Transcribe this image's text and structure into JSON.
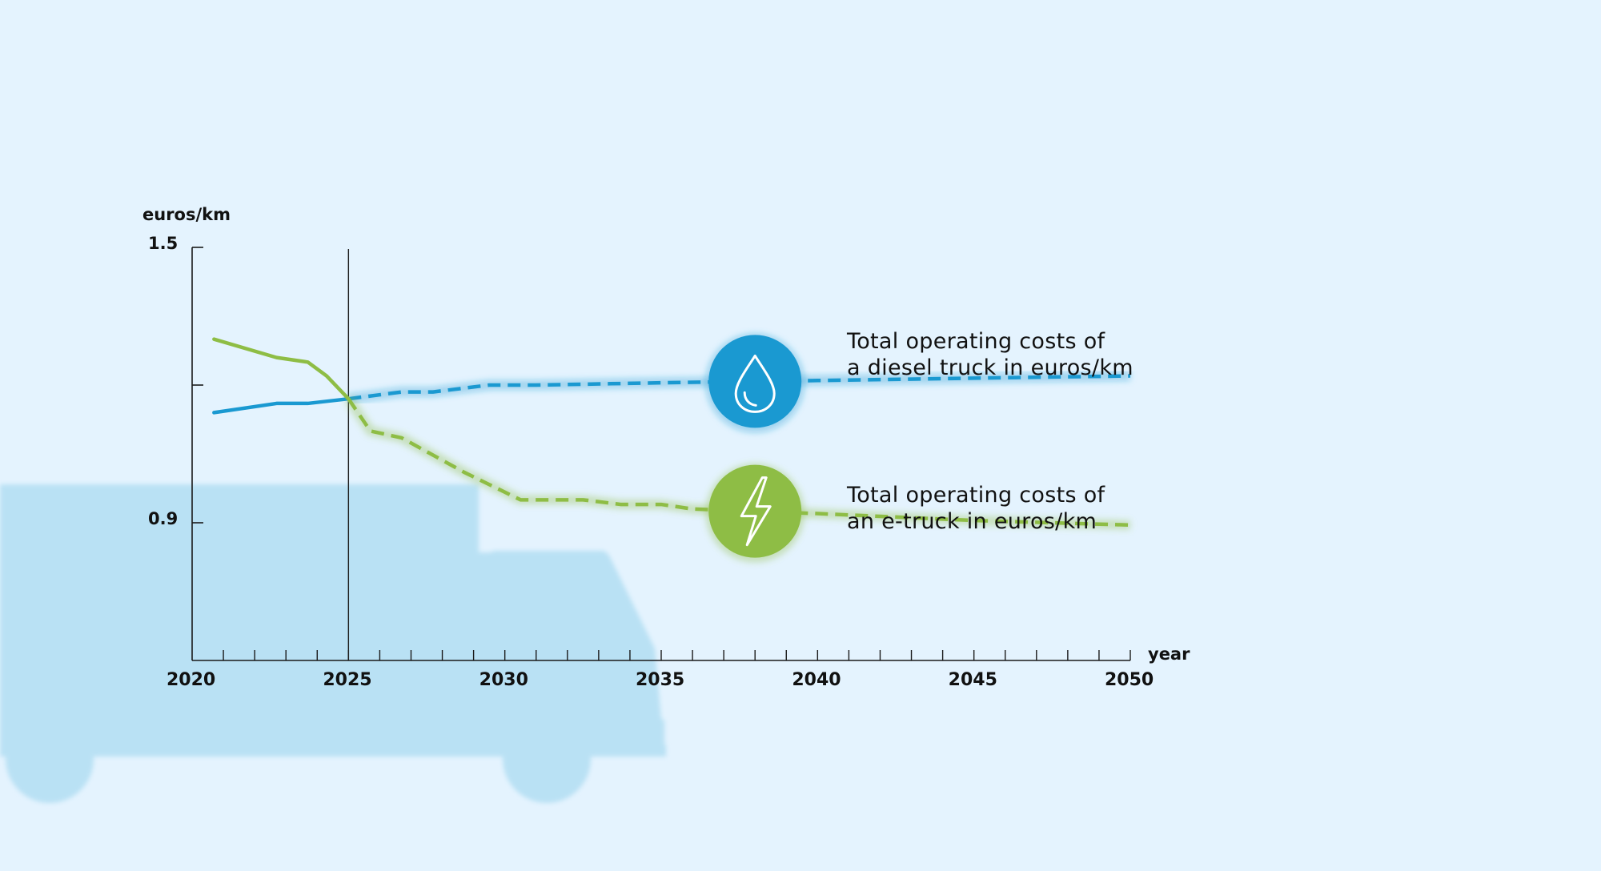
{
  "chart_data": {
    "type": "line",
    "ylabel": "euros/km",
    "xlabel": "year",
    "xlim": [
      2020,
      2050
    ],
    "ylim": [
      0.6,
      1.5
    ],
    "x_ticks": [
      "2020",
      "2025",
      "2030",
      "2035",
      "2040",
      "2045",
      "2050"
    ],
    "y_ticks": [
      "1.5",
      "0.9"
    ],
    "divider_x": 2025,
    "colors": {
      "diesel": "#1a99d1",
      "etruck": "#8ebd45",
      "axis": "#1a1a1a"
    },
    "series": [
      {
        "key": "diesel",
        "name": "Total operating costs of a diesel truck in euros/km",
        "label_lines": [
          "Total operating costs of",
          "a diesel truck in euros/km"
        ],
        "icon": "water-drop-icon",
        "icon_x": 2038,
        "solid": {
          "x": [
            2020.7,
            2022.7,
            2023.7,
            2025
          ],
          "y": [
            1.14,
            1.16,
            1.16,
            1.17
          ]
        },
        "dashed": {
          "x": [
            2025,
            2026.7,
            2027.7,
            2029.5,
            2031,
            2035,
            2040,
            2045,
            2050
          ],
          "y": [
            1.17,
            1.185,
            1.185,
            1.2,
            1.2,
            1.205,
            1.21,
            1.215,
            1.22
          ]
        }
      },
      {
        "key": "etruck",
        "name": "Total operating costs of an e-truck in euros/km",
        "label_lines": [
          "Total operating costs of",
          "an e-truck in euros/km"
        ],
        "icon": "lightning-bolt-icon",
        "icon_x": 2038,
        "solid": {
          "x": [
            2020.7,
            2022.7,
            2023.7,
            2024.3,
            2025
          ],
          "y": [
            1.3,
            1.26,
            1.25,
            1.22,
            1.17
          ]
        },
        "dashed": {
          "x": [
            2025,
            2025.7,
            2026.7,
            2028.7,
            2030.5,
            2032.5,
            2033.7,
            2035,
            2036,
            2040,
            2045,
            2050
          ],
          "y": [
            1.17,
            1.1,
            1.085,
            1.01,
            0.95,
            0.95,
            0.94,
            0.94,
            0.93,
            0.92,
            0.905,
            0.895
          ]
        }
      }
    ]
  }
}
